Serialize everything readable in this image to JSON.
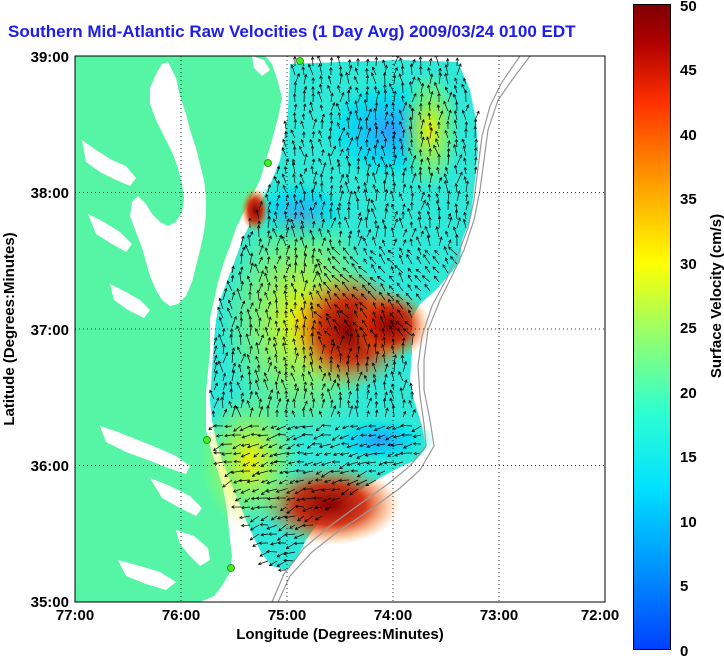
{
  "title": "Southern Mid-Atlantic Raw Velocities (1 Day Avg) 2009/03/24 0100 EDT",
  "map": {
    "x_label": "Longitude (Degrees:Minutes)",
    "y_label": "Latitude (Degrees:Minutes)",
    "x_ticks": [
      "77:00",
      "76:00",
      "75:00",
      "74:00",
      "73:00",
      "72:00"
    ],
    "y_ticks": [
      "39:00",
      "38:00",
      "37:00",
      "36:00",
      "35:00"
    ],
    "lon_range": [
      -77,
      -72
    ],
    "lat_range": [
      35,
      39
    ],
    "grid": "dotted"
  },
  "colorbar": {
    "label": "Surface Velocity (cm/s)",
    "ticks": [
      "50",
      "45",
      "40",
      "35",
      "30",
      "25",
      "20",
      "15",
      "10",
      "5",
      "0"
    ],
    "min": 0,
    "max": 50,
    "colormap": "jet"
  },
  "colors": {
    "land": "#55f5a5",
    "title": "#1c1cf0",
    "station": "#44ee22"
  },
  "stations": 4
}
